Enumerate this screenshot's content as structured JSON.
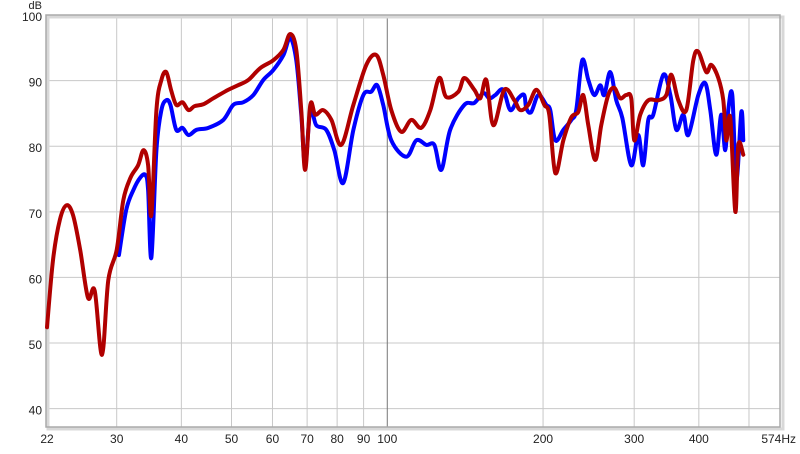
{
  "chart_data": {
    "type": "line",
    "title": "",
    "xlabel": "",
    "ylabel": "dB",
    "x_unit": "Hz",
    "x_scale": "log",
    "xlim": [
      22,
      574
    ],
    "ylim": [
      37.2,
      100
    ],
    "grid": true,
    "x_ticks": [
      22,
      30,
      40,
      50,
      60,
      70,
      80,
      90,
      100,
      200,
      300,
      400,
      500
    ],
    "x_tick_labels": [
      "22",
      "30",
      "40",
      "50",
      "60",
      "70",
      "80",
      "90",
      "100",
      "200",
      "300",
      "400",
      "574Hz"
    ],
    "y_ticks": [
      40,
      50,
      60,
      70,
      80,
      90,
      100
    ],
    "y_tick_labels": [
      "40",
      "50",
      "60",
      "70",
      "80",
      "90",
      "100"
    ],
    "colors": {
      "blue_series": "#0000ff",
      "red_series": "#b00000",
      "grid": "#c8c8c8"
    },
    "series": [
      {
        "color": "#0000ff",
        "x": [
          30.3,
          31.3,
          32.3,
          33.3,
          34.1,
          34.5,
          35.0,
          35.8,
          36.6,
          37.4,
          38.1,
          39.1,
          40.2,
          41.3,
          42.8,
          45.1,
          48.2,
          50.4,
          52.7,
          55.1,
          57.6,
          60.2,
          63.0,
          64.9,
          66.7,
          68.2,
          69.4,
          71.0,
          72.9,
          76.2,
          79.0,
          82.2,
          86.0,
          89.9,
          93.1,
          95.6,
          98.2,
          101.8,
          108.8,
          113.8,
          119.0,
          123.3,
          127.2,
          132.3,
          140.9,
          147.3,
          153.3,
          157.5,
          161.7,
          167.5,
          172.9,
          179.1,
          183.9,
          185.6,
          189.7,
          195.8,
          202.9,
          206.5,
          211.2,
          218.9,
          226.8,
          231.8,
          238.1,
          244.6,
          251.2,
          258.0,
          262.6,
          269.7,
          277.0,
          284.6,
          296.1,
          305.5,
          312.4,
          319.4,
          326.6,
          341.6,
          352.4,
          361.9,
          373.3,
          381.7,
          399.1,
          411.7,
          420.9,
          432.2,
          441.9,
          449.9,
          456.0,
          464.2,
          472.6,
          483.2,
          487.5
        ],
        "y": [
          63.4,
          70.3,
          73.3,
          75.2,
          75.6,
          73.3,
          63.0,
          79.4,
          85.5,
          87.0,
          86.3,
          82.5,
          82.8,
          81.7,
          82.5,
          82.8,
          84.0,
          86.3,
          86.7,
          87.8,
          90.1,
          91.6,
          93.9,
          96.5,
          93.1,
          84.8,
          77.1,
          85.5,
          83.2,
          82.5,
          79.4,
          74.4,
          82.5,
          87.8,
          88.3,
          89.3,
          86.3,
          80.9,
          78.4,
          80.9,
          80.2,
          80.2,
          76.4,
          82.5,
          86.3,
          86.6,
          88.1,
          87.3,
          87.8,
          88.6,
          85.5,
          87.3,
          87.8,
          85.8,
          85.2,
          87.8,
          86.3,
          85.5,
          80.9,
          82.5,
          84.0,
          85.5,
          93.1,
          90.1,
          87.8,
          89.3,
          87.8,
          91.3,
          87.0,
          84.3,
          77.1,
          81.7,
          77.1,
          84.0,
          84.8,
          90.9,
          87.8,
          82.5,
          84.8,
          81.7,
          87.8,
          89.6,
          85.5,
          78.7,
          84.8,
          79.4,
          85.5,
          87.8,
          74.8,
          85.2,
          80.9
        ]
      },
      {
        "color": "#b00000",
        "x": [
          22.0,
          22.6,
          23.3,
          24.0,
          24.7,
          25.5,
          26.4,
          27.2,
          28.1,
          28.9,
          30.0,
          30.9,
          31.9,
          33.0,
          33.8,
          34.5,
          35.0,
          35.8,
          36.6,
          37.4,
          38.2,
          39.1,
          40.2,
          41.3,
          42.4,
          44.1,
          46.1,
          49.3,
          51.5,
          53.9,
          56.8,
          60.2,
          63.0,
          64.9,
          66.7,
          68.2,
          69.4,
          71.0,
          72.6,
          75.2,
          78.0,
          81.5,
          86.0,
          91.1,
          95.2,
          98.2,
          101.8,
          106.4,
          111.3,
          116.3,
          121.1,
          126.0,
          130.0,
          137.2,
          140.9,
          147.3,
          151.3,
          155.4,
          160.3,
          168.3,
          176.0,
          180.7,
          187.3,
          194.1,
          201.1,
          205.6,
          211.2,
          218.9,
          226.8,
          233.9,
          239.2,
          244.6,
          252.3,
          259.1,
          267.3,
          274.5,
          281.9,
          289.6,
          296.1,
          300.1,
          308.2,
          319.4,
          334.0,
          346.1,
          353.9,
          365.1,
          378.3,
          390.3,
          399.1,
          413.5,
          422.8,
          436.2,
          446.0,
          452.0,
          460.1,
          470.5,
          476.8,
          487.5
        ],
        "y": [
          52.4,
          62.7,
          68.8,
          71.0,
          69.5,
          64.2,
          56.9,
          58.0,
          48.2,
          59.6,
          64.2,
          71.8,
          75.2,
          77.1,
          79.4,
          77.1,
          69.5,
          85.5,
          90.1,
          91.3,
          88.6,
          86.3,
          86.7,
          85.5,
          86.1,
          86.4,
          87.3,
          88.6,
          89.3,
          90.1,
          91.9,
          93.1,
          94.7,
          97.1,
          94.7,
          85.5,
          76.4,
          86.3,
          84.8,
          85.5,
          84.0,
          80.2,
          86.3,
          92.4,
          93.9,
          90.9,
          85.5,
          82.2,
          84.0,
          82.8,
          85.5,
          90.4,
          87.5,
          88.3,
          90.4,
          88.6,
          87.3,
          90.1,
          83.2,
          88.6,
          87.0,
          85.5,
          86.3,
          88.6,
          86.3,
          84.8,
          75.9,
          80.9,
          84.4,
          85.2,
          87.8,
          83.2,
          77.9,
          83.2,
          87.8,
          88.9,
          87.3,
          87.8,
          87.3,
          80.9,
          84.8,
          87.0,
          87.0,
          87.8,
          90.9,
          87.0,
          85.5,
          93.1,
          94.4,
          91.3,
          92.4,
          90.4,
          87.0,
          80.9,
          84.3,
          70.0,
          80.2,
          78.7
        ]
      }
    ]
  }
}
